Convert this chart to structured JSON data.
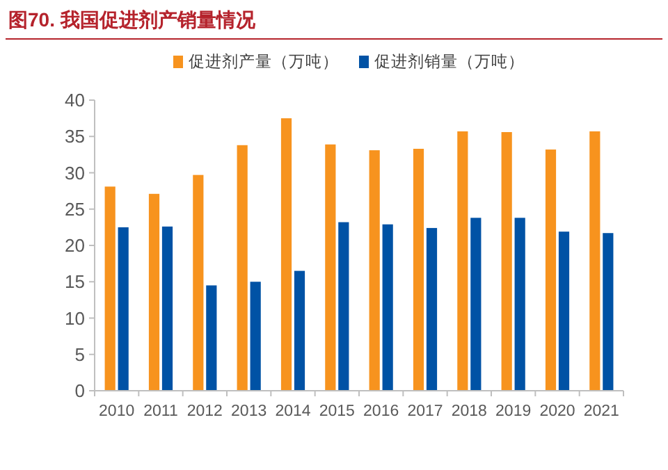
{
  "chart_data": {
    "type": "bar",
    "title": "图70. 我国促进剂产销量情况",
    "categories": [
      "2010",
      "2011",
      "2012",
      "2013",
      "2014",
      "2015",
      "2016",
      "2017",
      "2018",
      "2019",
      "2020",
      "2021"
    ],
    "series": [
      {
        "name": "促进剂产量（万吨）",
        "color": "#f7931e",
        "values": [
          28.1,
          27.1,
          29.7,
          33.8,
          37.5,
          33.9,
          33.1,
          33.3,
          35.7,
          35.6,
          33.2,
          35.7
        ]
      },
      {
        "name": "促进剂销量（万吨）",
        "color": "#0052a5",
        "values": [
          22.5,
          22.6,
          14.5,
          15.0,
          16.5,
          23.2,
          22.9,
          22.4,
          23.8,
          23.8,
          21.9,
          21.7
        ]
      }
    ],
    "ylim": [
      0,
      40
    ],
    "yticks": [
      0,
      5,
      10,
      15,
      20,
      25,
      30,
      35,
      40
    ],
    "grid": false,
    "legend": "top"
  }
}
